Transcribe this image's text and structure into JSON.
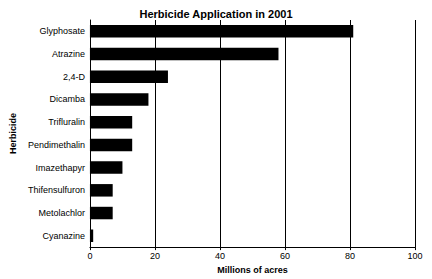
{
  "chart_data": {
    "type": "bar",
    "orientation": "horizontal",
    "title": "Herbicide Application in 2001",
    "x_label": "Millions of acres",
    "y_label": "Herbicide",
    "categories": [
      "Glyphosate",
      "Atrazine",
      "2,4-D",
      "Dicamba",
      "Trifluralin",
      "Pendimethalin",
      "Imazethapyr",
      "Thifensulfuron",
      "Metolachlor",
      "Cyanazine"
    ],
    "values": [
      81,
      58,
      24,
      18,
      13,
      13,
      10,
      7,
      7,
      1
    ],
    "color": "#000000",
    "xlim": [
      0,
      100
    ],
    "xticks": [
      0,
      20,
      40,
      60,
      80,
      100
    ],
    "grid": true
  }
}
